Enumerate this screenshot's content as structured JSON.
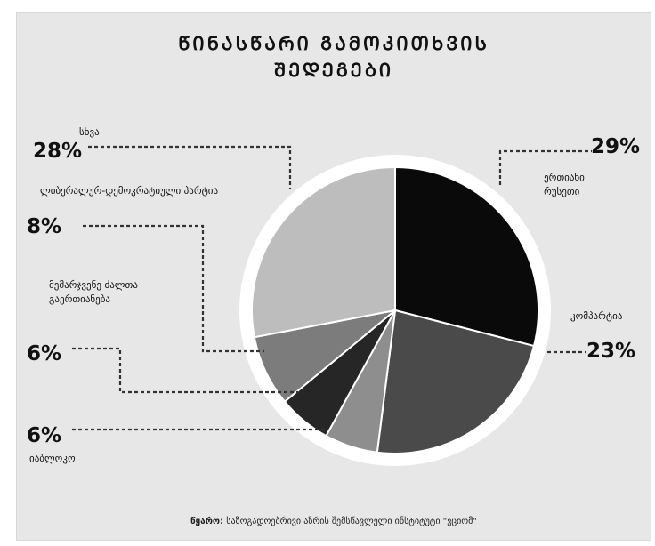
{
  "title_line1": "ᲬᲘᲜᲐᲡᲬᲐᲠᲘ ᲒᲐᲛᲝᲙᲘᲗᲮᲕᲘᲡ",
  "title_line2": "ᲨᲔᲓᲔᲒᲔᲑᲘ",
  "source_label": "წყარო:",
  "source_text": "საზოგადოებრივი აზრის შემსწავლელი ინსტიტუტი \"ვციომ\"",
  "colors": {
    "background": "#e7e7e7",
    "ring": "#ffffff",
    "slices": [
      "#0a0a0a",
      "#4a4a4a",
      "#8e8e8e",
      "#262626",
      "#7c7c7c",
      "#bdbdbd"
    ]
  },
  "chart_data": {
    "type": "pie",
    "title": "ᲬᲘᲜᲐᲡᲬᲐᲠᲘ ᲒᲐᲛᲝᲙᲘᲗᲮᲕᲘᲡ ᲨᲔᲓᲔᲒᲔᲑᲘ",
    "start_angle_deg": 0,
    "direction": "clockwise",
    "slices": [
      {
        "label": "ერთიანი რუსეთი",
        "value": 29,
        "display": "29%"
      },
      {
        "label": "კომპარტია",
        "value": 23,
        "display": "23%"
      },
      {
        "label": "იაბლოკო",
        "value": 6,
        "display": "6%"
      },
      {
        "label": "მემარჯვენე ძალთა გაერთიანება",
        "value": 6,
        "display": "6%"
      },
      {
        "label": "ლიბერალურ-დემოკრატიული პარტია",
        "value": 8,
        "display": "8%"
      },
      {
        "label": "სხვა",
        "value": 28,
        "display": "28%"
      }
    ]
  }
}
